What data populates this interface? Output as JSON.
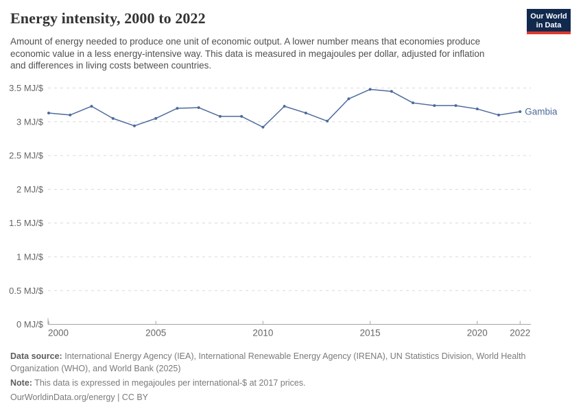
{
  "header": {
    "title": "Energy intensity, 2000 to 2022",
    "subtitle": "Amount of energy needed to produce one unit of economic output. A lower number means that economies produce economic value in a less energy-intensive way. This data is measured in megajoules per dollar, adjusted for inflation and differences in living costs between countries.",
    "logo": {
      "line1": "Our World",
      "line2": "in Data",
      "bg_color": "#12294e",
      "accent_color": "#dc3a2e"
    }
  },
  "chart_data": {
    "type": "line",
    "title": "Energy intensity, 2000 to 2022",
    "xlabel": "",
    "ylabel": "MJ/$",
    "xlim": [
      2000,
      2022
    ],
    "ylim": [
      0,
      3.5
    ],
    "grid": "horizontal-dashed",
    "legend_position": "end-of-line",
    "x": [
      2000,
      2001,
      2002,
      2003,
      2004,
      2005,
      2006,
      2007,
      2008,
      2009,
      2010,
      2011,
      2012,
      2013,
      2014,
      2015,
      2016,
      2017,
      2018,
      2019,
      2020,
      2021,
      2022
    ],
    "series": [
      {
        "name": "Gambia",
        "color": "#4c6a9c",
        "values": [
          3.13,
          3.1,
          3.23,
          3.05,
          2.94,
          3.05,
          3.2,
          3.21,
          3.08,
          3.08,
          2.92,
          3.23,
          3.13,
          3.01,
          3.34,
          3.48,
          3.45,
          3.28,
          3.24,
          3.24,
          3.19,
          3.1,
          3.15
        ]
      }
    ],
    "yticks": [
      {
        "value": 0,
        "label": "0 MJ/$"
      },
      {
        "value": 0.5,
        "label": "0.5 MJ/$"
      },
      {
        "value": 1,
        "label": "1 MJ/$"
      },
      {
        "value": 1.5,
        "label": "1.5 MJ/$"
      },
      {
        "value": 2,
        "label": "2 MJ/$"
      },
      {
        "value": 2.5,
        "label": "2.5 MJ/$"
      },
      {
        "value": 3,
        "label": "3 MJ/$"
      },
      {
        "value": 3.5,
        "label": "3.5 MJ/$"
      }
    ],
    "xticks": [
      2000,
      2005,
      2010,
      2015,
      2020,
      2022
    ],
    "colors": {
      "gridline": "#d9d9d9",
      "axis": "#a3a3a3",
      "tick_label": "#666666"
    }
  },
  "footer": {
    "data_source_label": "Data source:",
    "data_source_text": " International Energy Agency (IEA), International Renewable Energy Agency (IRENA), UN Statistics Division, World Health Organization (WHO), and World Bank (2025)",
    "note_label": "Note:",
    "note_text": " This data is expressed in megajoules per international-$ at 2017 prices.",
    "license": "OurWorldinData.org/energy | CC BY"
  }
}
